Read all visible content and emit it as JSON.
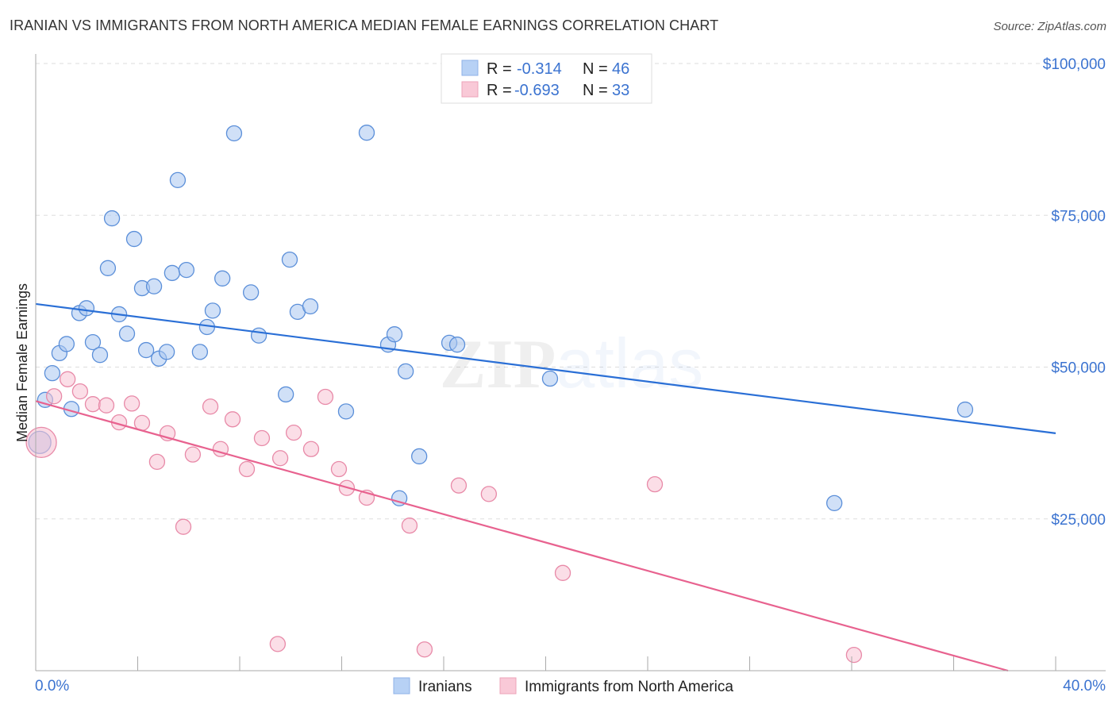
{
  "chart_data": {
    "type": "scatter",
    "title": "IRANIAN VS IMMIGRANTS FROM NORTH AMERICA MEDIAN FEMALE EARNINGS CORRELATION CHART",
    "source": "Source: ZipAtlas.com",
    "xlabel": "",
    "ylabel": "Median Female Earnings",
    "xlim": [
      0,
      40
    ],
    "ylim": [
      0,
      100000
    ],
    "x_tick_labels": [
      "0.0%",
      "40.0%"
    ],
    "y_ticks": [
      25000,
      50000,
      75000,
      100000
    ],
    "y_tick_labels": [
      "$25,000",
      "$50,000",
      "$75,000",
      "$100,000"
    ],
    "grid": true,
    "watermark": "ZIPatlas",
    "legend_position": "bottom",
    "stats": [
      {
        "r_label": "R =",
        "r": "-0.314",
        "n_label": "N =",
        "n": "46"
      },
      {
        "r_label": "R =",
        "r": "-0.693",
        "n_label": "N =",
        "n": "33"
      }
    ],
    "series": [
      {
        "name": "Iranians",
        "color": "#5b8fd9",
        "fill": "#a9c7f0",
        "line_color": "#2a6fd6",
        "trend": [
          [
            0,
            60400
          ],
          [
            40,
            39100
          ]
        ],
        "points": [
          [
            0.37,
            44600
          ],
          [
            0.65,
            49000
          ],
          [
            0.93,
            52300
          ],
          [
            1.21,
            53800
          ],
          [
            1.4,
            43100
          ],
          [
            1.71,
            58900
          ],
          [
            1.99,
            59700
          ],
          [
            2.24,
            54100
          ],
          [
            2.52,
            52000
          ],
          [
            2.83,
            66300
          ],
          [
            2.99,
            74500
          ],
          [
            3.27,
            58700
          ],
          [
            3.58,
            55500
          ],
          [
            3.86,
            71100
          ],
          [
            4.17,
            63000
          ],
          [
            4.33,
            52800
          ],
          [
            4.64,
            63300
          ],
          [
            4.83,
            51400
          ],
          [
            5.14,
            52500
          ],
          [
            5.35,
            65500
          ],
          [
            5.57,
            80800
          ],
          [
            5.91,
            66000
          ],
          [
            6.44,
            52500
          ],
          [
            6.72,
            56600
          ],
          [
            6.94,
            59300
          ],
          [
            7.32,
            64600
          ],
          [
            7.78,
            88500
          ],
          [
            8.44,
            62300
          ],
          [
            8.75,
            55200
          ],
          [
            9.81,
            45500
          ],
          [
            9.96,
            67700
          ],
          [
            10.27,
            59100
          ],
          [
            10.77,
            60000
          ],
          [
            12.17,
            42700
          ],
          [
            12.98,
            88600
          ],
          [
            13.82,
            53700
          ],
          [
            14.07,
            55400
          ],
          [
            14.51,
            49300
          ],
          [
            15.04,
            35300
          ],
          [
            14.26,
            28400
          ],
          [
            16.22,
            54000
          ],
          [
            16.53,
            53700
          ],
          [
            20.17,
            48100
          ],
          [
            31.32,
            27600
          ],
          [
            36.45,
            43000
          ],
          [
            0.16,
            37600,
            "large"
          ]
        ]
      },
      {
        "name": "Immigrants from North America",
        "color": "#e88aa8",
        "fill": "#f7c3d3",
        "line_color": "#e8628f",
        "trend": [
          [
            0,
            44400
          ],
          [
            38.13,
            0
          ]
        ],
        "points": [
          [
            0.22,
            37600,
            "large"
          ],
          [
            0.72,
            45200
          ],
          [
            1.25,
            48000
          ],
          [
            1.74,
            46000
          ],
          [
            2.24,
            43900
          ],
          [
            2.77,
            43700
          ],
          [
            3.27,
            40900
          ],
          [
            3.77,
            44000
          ],
          [
            4.17,
            40800
          ],
          [
            4.76,
            34400
          ],
          [
            5.17,
            39100
          ],
          [
            5.79,
            23700
          ],
          [
            6.16,
            35600
          ],
          [
            6.85,
            43500
          ],
          [
            7.25,
            36500
          ],
          [
            7.72,
            41400
          ],
          [
            8.28,
            33200
          ],
          [
            8.87,
            38300
          ],
          [
            9.49,
            4400
          ],
          [
            9.59,
            35000
          ],
          [
            10.12,
            39200
          ],
          [
            10.8,
            36500
          ],
          [
            11.36,
            45100
          ],
          [
            11.89,
            33200
          ],
          [
            12.2,
            30100
          ],
          [
            12.98,
            28500
          ],
          [
            14.66,
            23900
          ],
          [
            15.25,
            3500
          ],
          [
            16.59,
            30500
          ],
          [
            17.77,
            29100
          ],
          [
            20.67,
            16100
          ],
          [
            24.28,
            30700
          ],
          [
            32.09,
            2600
          ]
        ]
      }
    ]
  }
}
